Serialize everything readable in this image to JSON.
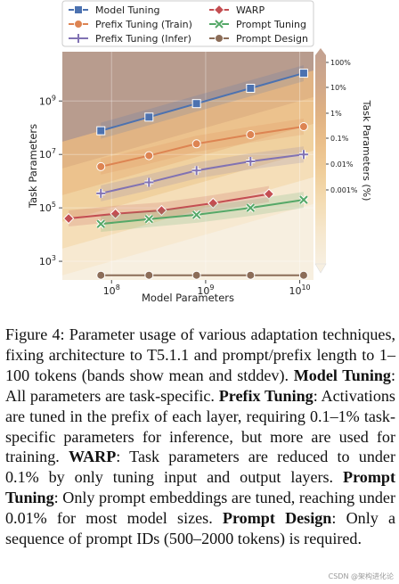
{
  "chart_data": {
    "type": "line",
    "xlabel": "Model Parameters",
    "ylabel": "Task Parameters",
    "xscale": "log",
    "yscale": "log",
    "xlim": [
      30000000,
      14000000000
    ],
    "ylim": [
      200,
      70000000000
    ],
    "x_ticks": [
      100000000,
      1000000000,
      10000000000
    ],
    "x_tick_labels": [
      "10^8",
      "10^9",
      "10^10"
    ],
    "y_ticks": [
      1000,
      100000,
      10000000,
      1000000000
    ],
    "y_tick_labels": [
      "10^3",
      "10^5",
      "10^7",
      "10^9"
    ],
    "grid": true,
    "legend_position": "top",
    "series": [
      {
        "name": "Model Tuning",
        "color": "#4c72b0",
        "marker": "square",
        "x": [
          77000000,
          250000000,
          800000000,
          3000000000,
          11000000000
        ],
        "y": [
          77000000,
          250000000,
          800000000,
          3000000000,
          11000000000
        ]
      },
      {
        "name": "Prefix Tuning (Train)",
        "color": "#dd8452",
        "marker": "circle",
        "x": [
          77000000,
          250000000,
          800000000,
          3000000000,
          11000000000
        ],
        "y": [
          3500000,
          9000000,
          25000000,
          55000000,
          110000000
        ]
      },
      {
        "name": "Prefix Tuning (Infer)",
        "color": "#8172b3",
        "marker": "plus",
        "x": [
          77000000,
          250000000,
          800000000,
          3000000000,
          11000000000
        ],
        "y": [
          350000,
          900000,
          2500000,
          5500000,
          10000000
        ]
      },
      {
        "name": "WARP",
        "color": "#c44e52",
        "marker": "diamond",
        "x": [
          35000000,
          110000000,
          340000000,
          1200000000,
          4700000000
        ],
        "y": [
          40000,
          60000,
          80000,
          150000,
          330000
        ]
      },
      {
        "name": "Prompt Tuning",
        "color": "#55a868",
        "marker": "x",
        "x": [
          77000000,
          250000000,
          800000000,
          3000000000,
          11000000000
        ],
        "y": [
          25000,
          38000,
          55000,
          100000,
          200000
        ]
      },
      {
        "name": "Prompt Design",
        "color": "#8c6d58",
        "marker": "circle",
        "x": [
          77000000,
          250000000,
          800000000,
          3000000000,
          11000000000
        ],
        "y": [
          300,
          300,
          300,
          300,
          300
        ]
      }
    ],
    "colorbar": {
      "label": "Task Parameters (%)",
      "ticks": [
        100,
        10,
        1,
        0.1,
        0.01,
        0.001
      ],
      "tick_labels": [
        "100%",
        "10%",
        "1%",
        "0.1%",
        "0.01%",
        "0.001%"
      ],
      "colors": [
        "#c4a290",
        "#d1a889",
        "#e0b283",
        "#ebc08b",
        "#f0cf9c",
        "#f4ddb5",
        "#f6e8cf",
        "#f7efe0"
      ]
    }
  },
  "caption": {
    "label": "Figure 4:",
    "intro": "Parameter usage of various adaptation techniques, fixing architecture to T5.1.1 and prompt/prefix length to 1–100 tokens (bands show mean and stddev).",
    "items": [
      {
        "term": "Model Tuning",
        "text": ": All parameters are task-specific."
      },
      {
        "term": "Prefix Tuning",
        "text": ": Activations are tuned in the prefix of each layer, requiring 0.1–1% task-specific parameters for inference, but more are used for training."
      },
      {
        "term": "WARP",
        "text": ": Task parameters are reduced to under 0.1% by only tuning input and output layers."
      },
      {
        "term": "Prompt Tuning",
        "text": ": Only prompt embeddings are tuned, reaching under 0.01% for most model sizes."
      },
      {
        "term": "Prompt Design",
        "text": ": Only a sequence of prompt IDs (500–2000 tokens) is required."
      }
    ]
  },
  "watermark": "CSDN @架构进化论"
}
